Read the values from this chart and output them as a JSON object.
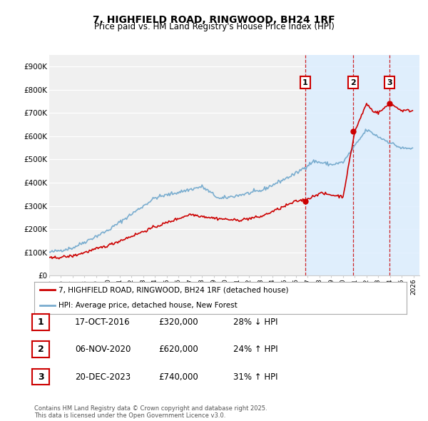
{
  "title": "7, HIGHFIELD ROAD, RINGWOOD, BH24 1RF",
  "subtitle": "Price paid vs. HM Land Registry's House Price Index (HPI)",
  "legend_label_red": "7, HIGHFIELD ROAD, RINGWOOD, BH24 1RF (detached house)",
  "legend_label_blue": "HPI: Average price, detached house, New Forest",
  "transactions": [
    {
      "num": 1,
      "date": "17-OCT-2016",
      "price": 320000,
      "pct": "28%",
      "dir": "↓",
      "x_year": 2016.79
    },
    {
      "num": 2,
      "date": "06-NOV-2020",
      "price": 620000,
      "pct": "24%",
      "dir": "↑",
      "x_year": 2020.85
    },
    {
      "num": 3,
      "date": "20-DEC-2023",
      "price": 740000,
      "pct": "31%",
      "dir": "↑",
      "x_year": 2023.96
    }
  ],
  "table_rows": [
    [
      "1",
      "17-OCT-2016",
      "£320,000",
      "28% ↓ HPI"
    ],
    [
      "2",
      "06-NOV-2020",
      "£620,000",
      "24% ↑ HPI"
    ],
    [
      "3",
      "20-DEC-2023",
      "£740,000",
      "31% ↑ HPI"
    ]
  ],
  "footer": "Contains HM Land Registry data © Crown copyright and database right 2025.\nThis data is licensed under the Open Government Licence v3.0.",
  "ylim": [
    0,
    950000
  ],
  "xlim_start": 1995.0,
  "xlim_end": 2026.5,
  "color_red": "#cc0000",
  "color_blue": "#7aadcf",
  "color_dashed": "#cc0000",
  "background_chart": "#f0f0f0",
  "background_highlight": "#ddeeff",
  "title_fontsize": 10,
  "subtitle_fontsize": 8.5
}
